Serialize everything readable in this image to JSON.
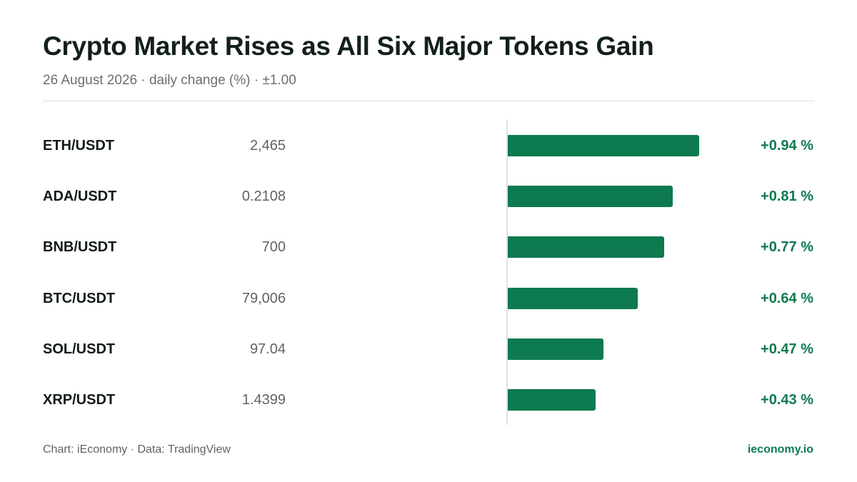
{
  "header": {
    "title": "Crypto Market Rises as All Six Major Tokens Gain",
    "subtitle": "26 August 2026 · daily change (%) · ±1.00"
  },
  "footer": {
    "source": "Chart: iEconomy · Data: TradingView",
    "brand": "ieconomy.io"
  },
  "colors": {
    "positive": "#0e7a4f",
    "text": "#111a16",
    "muted": "#5f6462"
  },
  "chart_data": {
    "type": "bar",
    "orientation": "horizontal",
    "title": "Crypto Market Rises as All Six Major Tokens Gain",
    "subtitle": "26 August 2026 · daily change (%) · ±1.00",
    "xlim": [
      -1.0,
      1.0
    ],
    "categories": [
      "ETH/USDT",
      "ADA/USDT",
      "BNB/USDT",
      "BTC/USDT",
      "SOL/USDT",
      "XRP/USDT"
    ],
    "prices": [
      "2,465",
      "0.2108",
      "700",
      "79,006",
      "97.04",
      "1.4399"
    ],
    "values": [
      0.94,
      0.81,
      0.77,
      0.64,
      0.47,
      0.43
    ],
    "value_labels": [
      "+0.94 %",
      "+0.81 %",
      "+0.77 %",
      "+0.64 %",
      "+0.47 %",
      "+0.43 %"
    ],
    "grid": false
  }
}
